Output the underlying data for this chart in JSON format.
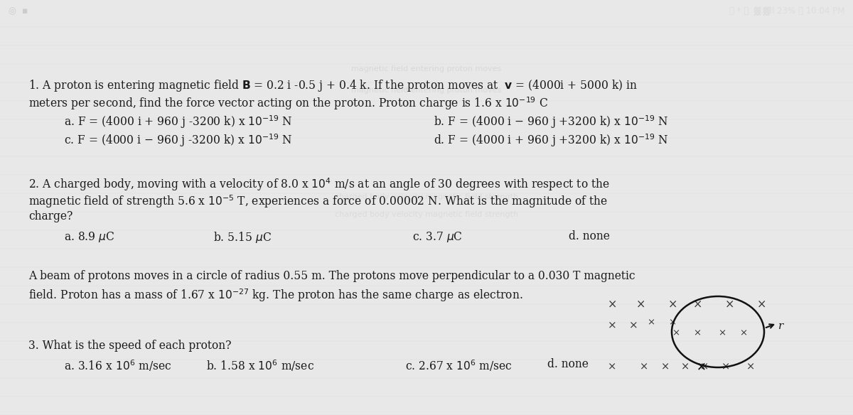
{
  "bg_color_top": "#4a5a6a",
  "bg_color_main": "#e8e8e8",
  "text_color": "#1a1a1a",
  "status_text": "23%  10:04 PM",
  "font_size": 11.2,
  "q1_line1": "1. A proton is entering magnetic field B = 0.2 i -0.5 j + 0.4 k. If the proton moves at  v = (4000i + 5000 k) in",
  "q1_line2": "meters per second, find the force vector acting on the proton. Proton charge is 1.6 x 10⁻¹⁹ C",
  "q1_a": "      a. F = (4000 i + 960 j -3200 k) x 10⁻¹⁹ N",
  "q1_b": "b. F = (4000 i – 960 j +3200 k) x 10⁻¹⁹ N",
  "q1_c": "      c. F = (4000 i – 960 j -3200 k) x 10⁻¹⁹ N",
  "q1_d": "d. F = (4000 i + 960 j +3200 k) x 10⁻¹⁹ N",
  "q2_line1": "2. A charged body, moving with a velocity of 8.0 x 10⁴ m/s at an angle of 30 degrees with respect to the",
  "q2_line2": "magnetic field of strength 5.6 x 10⁻⁵ T, experiences a force of 0.00002 N. What is the magnitude of the",
  "q2_line3": "charge?",
  "q2_a": "      a. 8.9 μC",
  "q2_b": "b. 5.15 μC",
  "q2_c": "c. 3.7 μC",
  "q2_d": "d. none",
  "q3_intro1": "A beam of protons moves in a circle of radius 0.55 m. The protons move perpendicular to a 0.030 T magnetic",
  "q3_intro2": "field. Proton has a mass of 1.67 x 10⁻²⁷ kg. The proton has the same charge as electron.",
  "q3_line1": "3. What is the speed of each proton?",
  "q3_a": "      a. 3.16 x 10⁶ m/sec",
  "q3_b": "b. 1.58 x 10⁶ m/sec",
  "q3_c": "c. 2.67 x 10⁶ m/sec",
  "q3_d": "d. none"
}
